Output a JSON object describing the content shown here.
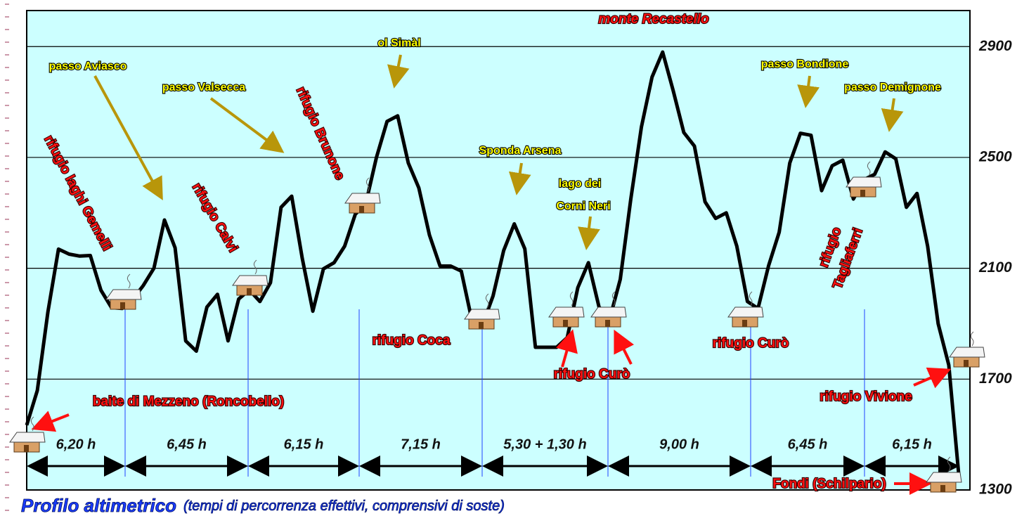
{
  "chart_data": {
    "type": "line",
    "title": "Profilo altimetrico",
    "subtitle": "(tempi di percorrenza effettivi, comprensivi di soste)",
    "categories": [
      null,
      null,
      null,
      null,
      null,
      null,
      null,
      null,
      null,
      null,
      null,
      null,
      null,
      null,
      null,
      null,
      null,
      null,
      null,
      null,
      null,
      null,
      null,
      null,
      null,
      null,
      null,
      null,
      null,
      null,
      null,
      null,
      null,
      null,
      null,
      null,
      null,
      null,
      null,
      null,
      null,
      null,
      null,
      null,
      null,
      null,
      null,
      null,
      null,
      null,
      null,
      null,
      null,
      null,
      null,
      null,
      null,
      null,
      null,
      null,
      null,
      null,
      null,
      null,
      null,
      null,
      null,
      null,
      null,
      null,
      null,
      null,
      null,
      null,
      null,
      null,
      null,
      null,
      null,
      null,
      null,
      null,
      null,
      null,
      null,
      null,
      null,
      null,
      null
    ],
    "series": [
      {
        "color": "#000000",
        "values": [
          1534,
          1659,
          1943,
          2169,
          2151,
          2144,
          2146,
          2021,
          1958,
          1955,
          1988,
          2038,
          2100,
          2274,
          2174,
          1838,
          1801,
          1960,
          2006,
          1838,
          1989,
          2022,
          1980,
          2048,
          2320,
          2360,
          2135,
          1945,
          2098,
          2120,
          2180,
          2295,
          2334,
          2500,
          2630,
          2650,
          2480,
          2390,
          2220,
          2108,
          2108,
          2090,
          1913,
          1895,
          2000,
          2164,
          2260,
          2170,
          1815,
          1815,
          1815,
          1850,
          2030,
          2120,
          1960,
          1917,
          2060,
          2350,
          2610,
          2790,
          2880,
          2740,
          2590,
          2541,
          2340,
          2280,
          2300,
          2180,
          1980,
          1955,
          2110,
          2230,
          2480,
          2587,
          2580,
          2380,
          2470,
          2490,
          2350,
          2420,
          2439,
          2520,
          2495,
          2320,
          2370,
          2180,
          1900,
          1751,
          1330
        ]
      }
    ],
    "ylim": [
      1300,
      3030
    ],
    "yticks": [
      1300,
      1700,
      2100,
      2500,
      2900
    ],
    "grid": true,
    "stage_times": [
      "6,20 h",
      "6,45 h",
      "6,15 h",
      "7,15 h",
      "5,30 + 1,30 h",
      "9,00 h",
      "6,45 h",
      "6,15 h"
    ],
    "annotations": [
      "monte Recastello",
      "rifugio laghi Gemelli",
      "passo Aviasco",
      "passo Valsecca",
      "rifugio Calvi",
      "rifugio Brunone",
      "ol Simàl",
      "Sponda Arsena",
      "lago dei",
      "Corni Neri",
      "rifugio Coca",
      "rifugio Curò",
      "rifugio Curò",
      "passo Bondione",
      "passo Demignone",
      "rifugio",
      "Tagliaferri",
      "baite di Mezzeno (Roncobello)",
      "rifugio Vivione",
      "Fondi (Schilpario)"
    ]
  }
}
